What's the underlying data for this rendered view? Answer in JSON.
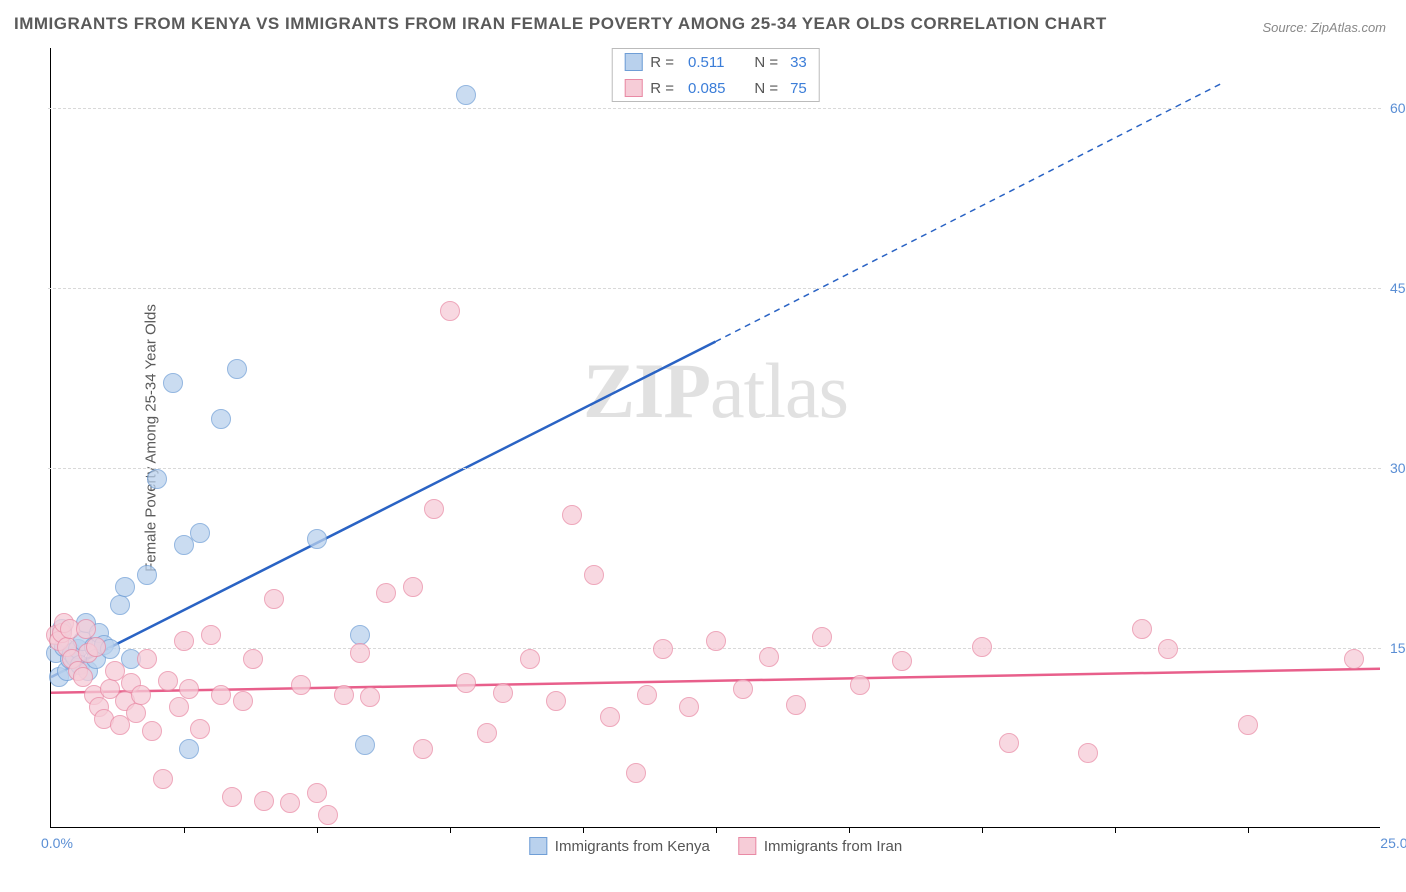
{
  "title": "IMMIGRANTS FROM KENYA VS IMMIGRANTS FROM IRAN FEMALE POVERTY AMONG 25-34 YEAR OLDS CORRELATION CHART",
  "source": "Source: ZipAtlas.com",
  "watermark": "ZIPatlas",
  "y_axis_title": "Female Poverty Among 25-34 Year Olds",
  "chart": {
    "type": "scatter",
    "xlim": [
      0,
      25
    ],
    "ylim": [
      0,
      65
    ],
    "x_origin_label": "0.0%",
    "x_end_label": "25.0%",
    "x_ticks": [
      2.5,
      5,
      7.5,
      10,
      12.5,
      15,
      17.5,
      20,
      22.5
    ],
    "y_gridlines": [
      {
        "value": 15,
        "label": "15.0%"
      },
      {
        "value": 30,
        "label": "30.0%"
      },
      {
        "value": 45,
        "label": "45.0%"
      },
      {
        "value": 60,
        "label": "60.0%"
      }
    ],
    "marker_radius": 10,
    "colors": {
      "kenya_fill": "#b9d1ed",
      "kenya_stroke": "#6f9ed6",
      "kenya_line": "#2a63c4",
      "iran_fill": "#f6ccd7",
      "iran_stroke": "#e98aa5",
      "iran_line": "#e85f8b",
      "grid": "#d9d9d9",
      "axis_text": "#5a8ed4",
      "title_text": "#5a5a5a"
    },
    "series": [
      {
        "key": "kenya",
        "label": "Immigrants from Kenya",
        "R": "0.511",
        "N": "33",
        "trend": {
          "x1": 0,
          "y1": 12.5,
          "x2": 12.5,
          "y2": 40.5,
          "x2_dash": 22,
          "y2_dash": 62
        },
        "points": [
          [
            0.1,
            14.5
          ],
          [
            0.15,
            12.5
          ],
          [
            0.2,
            16.5
          ],
          [
            0.25,
            15
          ],
          [
            0.3,
            13
          ],
          [
            0.35,
            14
          ],
          [
            0.4,
            14.5
          ],
          [
            0.45,
            14.2
          ],
          [
            0.5,
            14.8
          ],
          [
            0.55,
            13.5
          ],
          [
            0.6,
            15.5
          ],
          [
            0.65,
            17
          ],
          [
            0.7,
            13
          ],
          [
            0.8,
            15
          ],
          [
            0.85,
            14
          ],
          [
            0.9,
            16.2
          ],
          [
            1.0,
            15.2
          ],
          [
            1.1,
            14.8
          ],
          [
            1.3,
            18.5
          ],
          [
            1.4,
            20
          ],
          [
            1.5,
            14
          ],
          [
            1.8,
            21
          ],
          [
            2.0,
            29
          ],
          [
            2.3,
            37
          ],
          [
            2.5,
            23.5
          ],
          [
            2.6,
            6.5
          ],
          [
            2.8,
            24.5
          ],
          [
            3.2,
            34
          ],
          [
            3.5,
            38.2
          ],
          [
            5.0,
            24
          ],
          [
            5.8,
            16
          ],
          [
            5.9,
            6.8
          ],
          [
            7.8,
            61
          ]
        ]
      },
      {
        "key": "iran",
        "label": "Immigrants from Iran",
        "R": "0.085",
        "N": "75",
        "trend": {
          "x1": 0,
          "y1": 11.2,
          "x2": 25,
          "y2": 13.2
        },
        "points": [
          [
            0.1,
            16
          ],
          [
            0.15,
            15.5
          ],
          [
            0.2,
            16.2
          ],
          [
            0.25,
            17
          ],
          [
            0.3,
            15
          ],
          [
            0.35,
            16.5
          ],
          [
            0.4,
            14
          ],
          [
            0.5,
            13
          ],
          [
            0.6,
            12.5
          ],
          [
            0.65,
            16.5
          ],
          [
            0.7,
            14.5
          ],
          [
            0.8,
            11
          ],
          [
            0.85,
            15
          ],
          [
            0.9,
            10
          ],
          [
            1.0,
            9
          ],
          [
            1.1,
            11.5
          ],
          [
            1.2,
            13
          ],
          [
            1.3,
            8.5
          ],
          [
            1.4,
            10.5
          ],
          [
            1.5,
            12
          ],
          [
            1.6,
            9.5
          ],
          [
            1.7,
            11
          ],
          [
            1.8,
            14
          ],
          [
            1.9,
            8
          ],
          [
            2.1,
            4
          ],
          [
            2.2,
            12.2
          ],
          [
            2.4,
            10
          ],
          [
            2.5,
            15.5
          ],
          [
            2.6,
            11.5
          ],
          [
            2.8,
            8.2
          ],
          [
            3.0,
            16
          ],
          [
            3.2,
            11
          ],
          [
            3.4,
            2.5
          ],
          [
            3.6,
            10.5
          ],
          [
            3.8,
            14
          ],
          [
            4.0,
            2.2
          ],
          [
            4.2,
            19
          ],
          [
            4.5,
            2
          ],
          [
            4.7,
            11.8
          ],
          [
            5.0,
            2.8
          ],
          [
            5.2,
            1
          ],
          [
            5.5,
            11
          ],
          [
            5.8,
            14.5
          ],
          [
            6.0,
            10.8
          ],
          [
            6.3,
            19.5
          ],
          [
            6.8,
            20
          ],
          [
            7.0,
            6.5
          ],
          [
            7.2,
            26.5
          ],
          [
            7.5,
            43
          ],
          [
            7.8,
            12
          ],
          [
            8.2,
            7.8
          ],
          [
            8.5,
            11.2
          ],
          [
            9.0,
            14
          ],
          [
            9.5,
            10.5
          ],
          [
            9.8,
            26
          ],
          [
            10.2,
            21
          ],
          [
            10.5,
            9.2
          ],
          [
            11.0,
            4.5
          ],
          [
            11.2,
            11
          ],
          [
            11.5,
            14.8
          ],
          [
            12.0,
            10
          ],
          [
            12.5,
            15.5
          ],
          [
            13.0,
            11.5
          ],
          [
            13.5,
            14.2
          ],
          [
            14.0,
            10.2
          ],
          [
            14.5,
            15.8
          ],
          [
            15.2,
            11.8
          ],
          [
            16.0,
            13.8
          ],
          [
            17.5,
            15
          ],
          [
            18.0,
            7
          ],
          [
            19.5,
            6.2
          ],
          [
            20.5,
            16.5
          ],
          [
            21.0,
            14.8
          ],
          [
            22.5,
            8.5
          ],
          [
            24.5,
            14
          ]
        ]
      }
    ]
  },
  "legend_bottom": [
    {
      "key": "kenya",
      "label": "Immigrants from Kenya"
    },
    {
      "key": "iran",
      "label": "Immigrants from Iran"
    }
  ]
}
